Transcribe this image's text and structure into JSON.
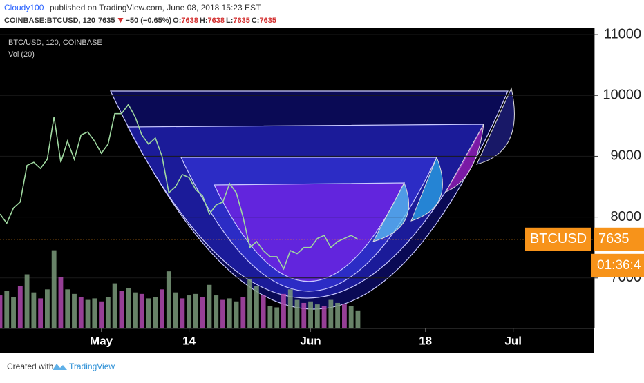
{
  "header": {
    "author": "Cloudy100",
    "published": "published on TradingView.com, June 08, 2018 15:23 EST",
    "symbol": "COINBASE:BTCUSD, 120",
    "last": "7635",
    "change": "−50 (−0.65%)",
    "ohlc": [
      {
        "label": "O:",
        "value": "7638"
      },
      {
        "label": "H:",
        "value": "7638"
      },
      {
        "label": "L:",
        "value": "7635"
      },
      {
        "label": "C:",
        "value": "7635"
      }
    ]
  },
  "chart_data": {
    "type": "line",
    "legend": [
      "BTC/USD, 120, COINBASE",
      "Vol (20)"
    ],
    "x": [
      "04-16",
      "04-17",
      "04-18",
      "04-19",
      "04-20",
      "04-21",
      "04-22",
      "04-23",
      "04-24",
      "04-25",
      "04-26",
      "04-27",
      "04-28",
      "04-29",
      "04-30",
      "05-01",
      "05-02",
      "05-03",
      "05-04",
      "05-05",
      "05-06",
      "05-07",
      "05-08",
      "05-09",
      "05-10",
      "05-11",
      "05-12",
      "05-13",
      "05-14",
      "05-15",
      "05-16",
      "05-17",
      "05-18",
      "05-19",
      "05-20",
      "05-21",
      "05-22",
      "05-23",
      "05-24",
      "05-25",
      "05-26",
      "05-27",
      "05-28",
      "05-29",
      "05-30",
      "05-31",
      "06-01",
      "06-02",
      "06-03",
      "06-04",
      "06-05",
      "06-06",
      "06-07",
      "06-08"
    ],
    "series": [
      {
        "name": "BTC/USD, 120, COINBASE",
        "color": "#9fd8a0",
        "values": [
          8050,
          7900,
          8150,
          8250,
          8850,
          8900,
          8800,
          8950,
          9650,
          8900,
          9250,
          8950,
          9350,
          9400,
          9250,
          9050,
          9200,
          9700,
          9700,
          9850,
          9650,
          9350,
          9200,
          9300,
          9000,
          8400,
          8500,
          8700,
          8650,
          8450,
          8350,
          8050,
          8200,
          8250,
          8550,
          8400,
          8000,
          7500,
          7600,
          7450,
          7350,
          7350,
          7150,
          7450,
          7400,
          7500,
          7500,
          7650,
          7700,
          7500,
          7600,
          7650,
          7700,
          7635
        ]
      },
      {
        "name": "Vol (20)",
        "color": "#7a9a7a",
        "axis": "y2",
        "values": [
          2200,
          2500,
          2100,
          2800,
          3600,
          2400,
          2000,
          2600,
          5200,
          3400,
          2600,
          2300,
          2100,
          1900,
          2000,
          1800,
          2100,
          3000,
          2500,
          2700,
          2400,
          2300,
          2000,
          2100,
          2600,
          3800,
          2400,
          2000,
          2200,
          2300,
          2100,
          2900,
          2200,
          1900,
          2000,
          1800,
          2100,
          3300,
          2800,
          2200,
          1500,
          1400,
          2300,
          2600,
          1900,
          1700,
          1800,
          1600,
          1500,
          1900,
          1700,
          1600,
          1500,
          1200
        ]
      }
    ],
    "ylim": [
      6170,
      11114
    ],
    "yticks": [
      7000,
      8000,
      9000,
      10000,
      11000
    ],
    "y2lim": [
      0,
      20000
    ],
    "xlim": [
      "04-16",
      "07-13"
    ],
    "xticks": [
      {
        "value": "05-01",
        "label": "May"
      },
      {
        "value": "05-14",
        "label": "14"
      },
      {
        "value": "06-01",
        "label": "Jun"
      },
      {
        "value": "06-18",
        "label": "18"
      },
      {
        "value": "07-01",
        "label": "Jul"
      }
    ],
    "price_line": {
      "label": "BTCUSD",
      "value": 7635,
      "color": "#f7931a"
    },
    "countdown": "01:36:4"
  }
}
